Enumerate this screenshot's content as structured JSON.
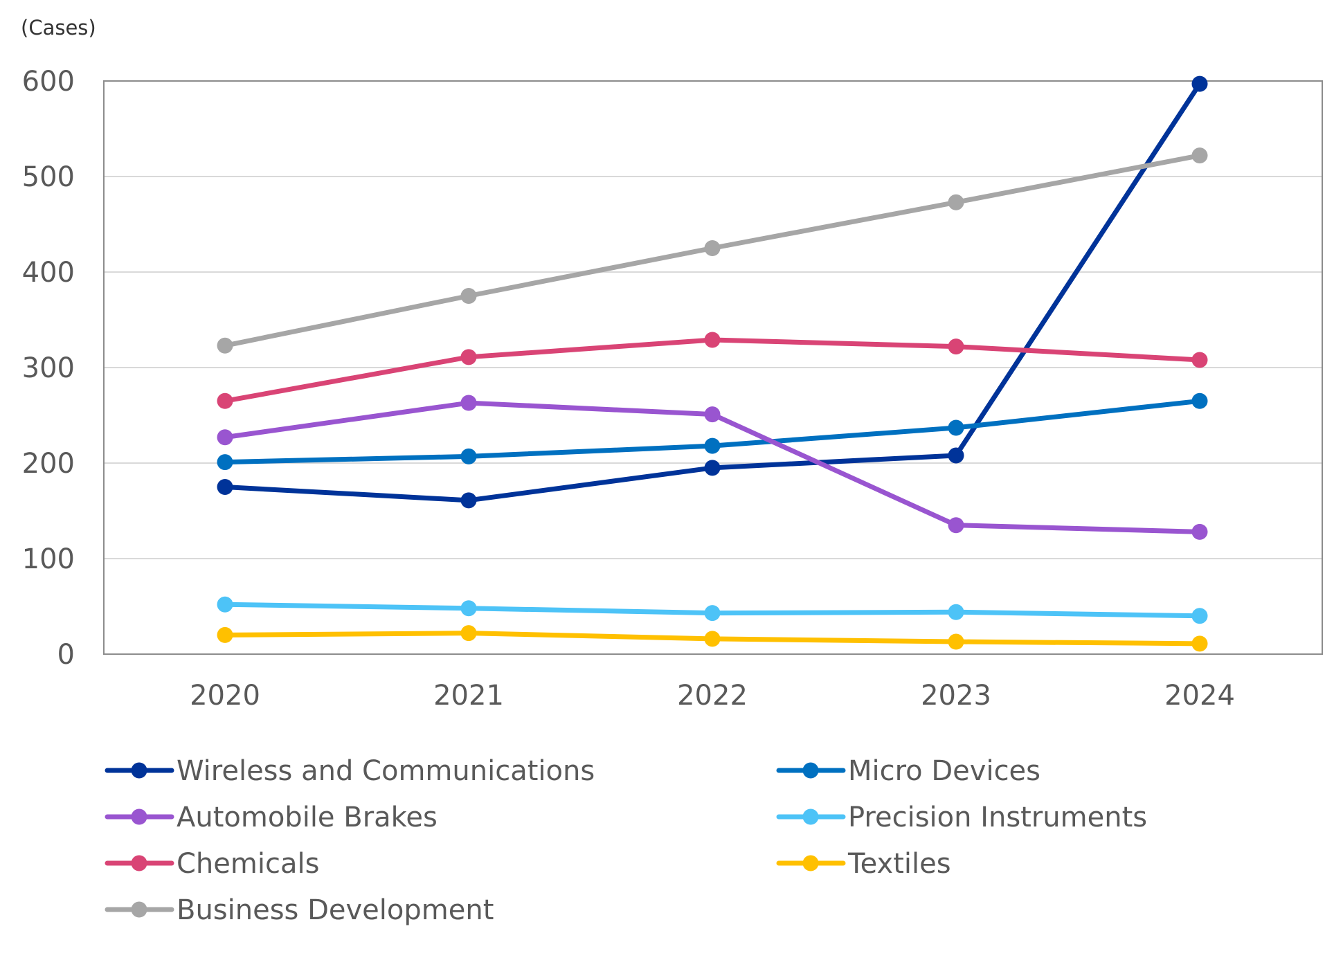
{
  "chart_data": {
    "type": "line",
    "title": "",
    "ylabel": "(Cases)",
    "xlabel": "",
    "categories": [
      "2020",
      "2021",
      "2022",
      "2023",
      "2024"
    ],
    "ylim": [
      0,
      600
    ],
    "yticks": [
      0,
      100,
      200,
      300,
      400,
      500,
      600
    ],
    "grid": true,
    "legend_position": "bottom",
    "series": [
      {
        "name": "Wireless and Communications",
        "color": "#003399",
        "values": [
          175,
          161,
          195,
          208,
          597
        ]
      },
      {
        "name": "Micro Devices",
        "color": "#0070c0",
        "values": [
          201,
          207,
          218,
          237,
          265
        ]
      },
      {
        "name": "Automobile Brakes",
        "color": "#9955d0",
        "values": [
          227,
          263,
          251,
          135,
          128
        ]
      },
      {
        "name": "Precision Instruments",
        "color": "#4dc3f7",
        "values": [
          52,
          48,
          43,
          44,
          40
        ]
      },
      {
        "name": "Chemicals",
        "color": "#d94475",
        "values": [
          265,
          311,
          329,
          322,
          308
        ]
      },
      {
        "name": "Textiles",
        "color": "#ffc000",
        "values": [
          20,
          22,
          16,
          13,
          11
        ]
      },
      {
        "name": "Business Development",
        "color": "#a6a6a6",
        "values": [
          323,
          375,
          425,
          473,
          522
        ]
      }
    ]
  }
}
